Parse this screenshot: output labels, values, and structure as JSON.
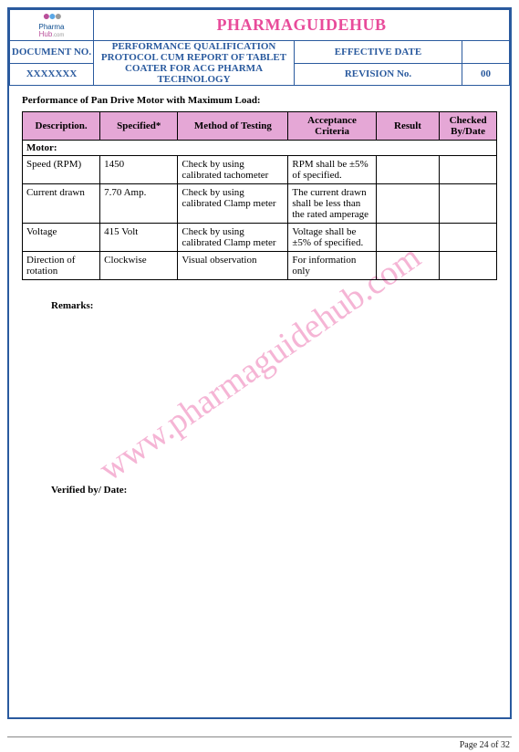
{
  "brand": "PHARMAGUIDEHUB",
  "watermark": "www.pharmaguidehub.com",
  "header": {
    "doc_no_label": "DOCUMENT NO.",
    "doc_no_value": "XXXXXXX",
    "doc_title": "PERFORMANCE QUALIFICATION PROTOCOL CUM REPORT OF TABLET COATER FOR ACG PHARMA TECHNOLOGY",
    "effective_label": "EFFECTIVE DATE",
    "effective_value": "",
    "revision_label": "REVISION No.",
    "revision_value": "00"
  },
  "section_title": "Performance of Pan Drive Motor with Maximum Load:",
  "columns": {
    "desc": "Description.",
    "spec": "Specified*",
    "method": "Method of Testing",
    "acc": "Acceptance Criteria",
    "result": "Result",
    "chk": "Checked By/Date"
  },
  "section_row": "Motor:",
  "rows": [
    {
      "desc": "Speed (RPM)",
      "spec": "1450",
      "method": "Check by using calibrated tachometer",
      "acc": "RPM shall be ±5% of specified.",
      "result": "",
      "chk": ""
    },
    {
      "desc": "Current drawn",
      "spec": "7.70 Amp.",
      "method": "Check by using calibrated Clamp meter",
      "acc": "The current drawn shall be less than the rated amperage",
      "result": "",
      "chk": ""
    },
    {
      "desc": "Voltage",
      "spec": "415 Volt",
      "method": "Check by using calibrated Clamp meter",
      "acc": "Voltage shall be ±5% of specified.",
      "result": "",
      "chk": ""
    },
    {
      "desc": "Direction of rotation",
      "spec": "Clockwise",
      "method": "Visual observation",
      "acc": "For information only",
      "result": "",
      "chk": ""
    }
  ],
  "remarks_label": "Remarks:",
  "verified_label": "Verified by/ Date:",
  "footer": {
    "page": "Page 24 of 32"
  },
  "colors": {
    "border": "#2a5a9e",
    "brand": "#e84b9a",
    "th_bg": "#e5a7d6",
    "watermark": "#f5b5d5"
  }
}
